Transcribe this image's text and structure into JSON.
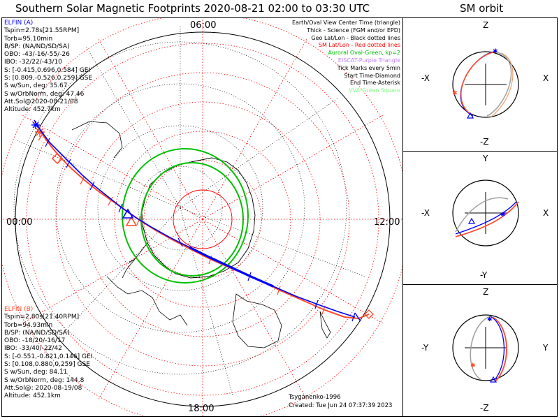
{
  "main_title": "Southern Solar Magnetic Footprints 2020-08-21 02:00 to 03:30 UTC",
  "orbit_title": "SM orbit",
  "hour_labels": {
    "top": "06:00",
    "left": "00:00",
    "right": "12:00",
    "bottom": "18:00"
  },
  "elfin_a": {
    "color": "#0000ff",
    "lines": [
      "ELFIN (A)",
      "Tspin=2.78s[21.55RPM]",
      "Torb=95.10min",
      "B/SP: (NA/ND/SD/SA)",
      "OBO: -43/-16/-55/-26",
      "IBO: -32/22/-43/10",
      "S: [-0.415,0.696,0.584] GEI",
      "S: [0.809,-0.526,0.259] GSE",
      "S w/Sun, deg: 35.67",
      "S w/OrbNorm, deg: 47.46",
      "Att.Sol@2020-08-21/08",
      "Altitude: 452.7km"
    ]
  },
  "elfin_b": {
    "color": "#ff4a2a",
    "lines": [
      "ELFIN (B)",
      "Tspin=2.80s[21.40RPM]",
      "Torb=94.93min",
      "B/SP: (NA/ND/SD/SA)",
      "OBO: -18/20/-16/17",
      "IBO: -33/40/-22/42",
      "S: [-0.551,-0.821,0.146] GEI",
      "S: [0.108,0.880,0.259] GSE",
      "S w/Sun, deg: 84.11",
      "S w/OrbNorm, deg: 144.8",
      "Att.Sol@: 2020-08-19/08",
      "Altitude: 452.1km"
    ]
  },
  "legend": [
    {
      "text": "Earth/Oval View Center Time (triangle)",
      "color": "#000000"
    },
    {
      "text": "Thick - Science (FGM and/or EPD)",
      "color": "#000000"
    },
    {
      "text": "Geo Lat/Lon - Black dotted lines",
      "color": "#000000"
    },
    {
      "text": "SM Lat/Lon - Red dotted lines",
      "color": "#ff0000"
    },
    {
      "text": "Auroral Oval-Green, kp=2",
      "color": "#00c000"
    },
    {
      "text": "EISCAT-Purple Triangle",
      "color": "#c080ff"
    },
    {
      "text": "Tick Marks every 5min",
      "color": "#000000"
    },
    {
      "text": "Start Time-Diamond",
      "color": "#000000"
    },
    {
      "text": "End Time-Asterisk",
      "color": "#000000"
    },
    {
      "text": "VVA-Green Square",
      "color": "#80ff80"
    }
  ],
  "credits": {
    "model": "Tsyganenko-1996",
    "created": "Created: Tue Jun 24 07:37:39 2023"
  },
  "orbit_panels": [
    {
      "top": "Z",
      "bottom": "-Z",
      "left": "-X",
      "right": "X"
    },
    {
      "top": "Y",
      "bottom": "-Y",
      "left": "-X",
      "right": "X"
    },
    {
      "top": "Z",
      "bottom": "-Z",
      "left": "-Y",
      "right": "Y"
    }
  ],
  "colors": {
    "elfin_a": "#0000ff",
    "elfin_b": "#ff4a2a",
    "oval": "#00c000",
    "sm_grid": "#ff0000",
    "geo_grid": "#000000",
    "shadow": "#a0a0a0"
  }
}
